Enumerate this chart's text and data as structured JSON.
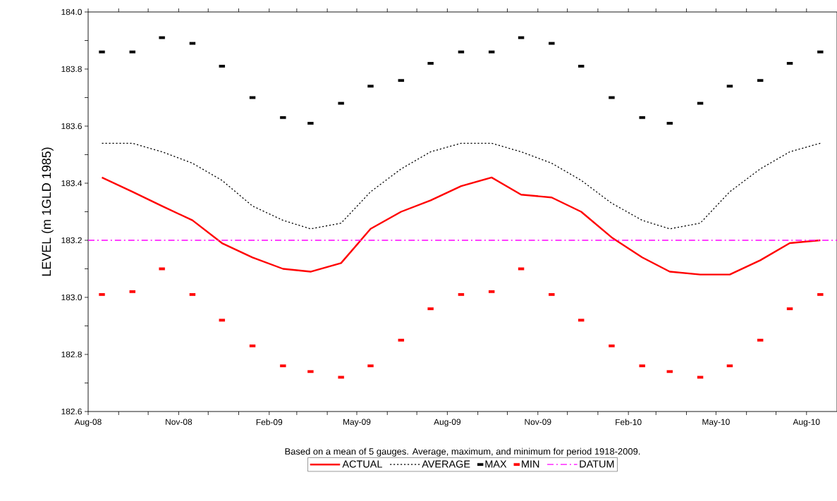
{
  "chart_data": {
    "type": "line",
    "ylabel": "LEVEL (m 1GLD 1985)",
    "annotations": [
      "Based on a mean of 5 gauges.  Average, maximum, and minimum for period 1918-2009."
    ],
    "x": [
      "2008-08-15",
      "2008-09-15",
      "2008-10-15",
      "2008-11-15",
      "2008-12-15",
      "2009-01-15",
      "2009-02-15",
      "2009-03-15",
      "2009-04-15",
      "2009-05-15",
      "2009-06-15",
      "2009-07-15",
      "2009-08-15",
      "2009-09-15",
      "2009-10-15",
      "2009-11-15",
      "2009-12-15",
      "2010-01-15",
      "2010-02-15",
      "2010-03-15",
      "2010-04-15",
      "2010-05-15",
      "2010-06-15",
      "2010-07-15",
      "2010-08-15"
    ],
    "series": [
      {
        "name": "ACTUAL",
        "color": "#ff0000",
        "line_style": "solid",
        "values": [
          183.42,
          183.37,
          183.32,
          183.27,
          183.19,
          183.14,
          183.1,
          183.09,
          183.12,
          183.24,
          183.3,
          183.34,
          183.39,
          183.42,
          183.36,
          183.35,
          183.3,
          183.21,
          183.14,
          183.09,
          183.08,
          183.08,
          183.13,
          183.19,
          183.2
        ]
      },
      {
        "name": "AVERAGE",
        "color": "#000000",
        "line_style": "dotted",
        "values": [
          183.54,
          183.54,
          183.51,
          183.47,
          183.41,
          183.32,
          183.27,
          183.24,
          183.26,
          183.37,
          183.45,
          183.51,
          183.54,
          183.54,
          183.51,
          183.47,
          183.41,
          183.33,
          183.27,
          183.24,
          183.26,
          183.37,
          183.45,
          183.51,
          183.54
        ]
      },
      {
        "name": "MAX",
        "type": "scatter",
        "color": "#000000",
        "values": [
          183.86,
          183.86,
          183.91,
          183.89,
          183.81,
          183.7,
          183.63,
          183.61,
          183.68,
          183.74,
          183.76,
          183.82,
          183.86,
          183.86,
          183.91,
          183.89,
          183.81,
          183.7,
          183.63,
          183.61,
          183.68,
          183.74,
          183.76,
          183.82,
          183.86
        ]
      },
      {
        "name": "MIN",
        "type": "scatter",
        "color": "#ff0000",
        "values": [
          183.01,
          183.02,
          183.1,
          183.01,
          182.92,
          182.83,
          182.76,
          182.74,
          182.72,
          182.76,
          182.85,
          182.96,
          183.01,
          183.02,
          183.1,
          183.01,
          182.92,
          182.83,
          182.76,
          182.74,
          182.72,
          182.76,
          182.85,
          182.96,
          183.01
        ]
      }
    ],
    "ref_lines": [
      {
        "axis": "y",
        "value": 183.2,
        "label": "DATUM",
        "color": "#ff00ff",
        "line_style": "dashdot"
      }
    ],
    "xlim": [
      "2008-08-01",
      "2010-09-01"
    ],
    "xticks": [
      {
        "value": "2008-08-01",
        "label": "Aug-08"
      },
      {
        "value": "2008-09-01",
        "label": null
      },
      {
        "value": "2008-10-01",
        "label": null
      },
      {
        "value": "2008-11-01",
        "label": "Nov-08"
      },
      {
        "value": "2008-12-01",
        "label": null
      },
      {
        "value": "2009-01-01",
        "label": null
      },
      {
        "value": "2009-02-01",
        "label": "Feb-09"
      },
      {
        "value": "2009-03-01",
        "label": null
      },
      {
        "value": "2009-04-01",
        "label": null
      },
      {
        "value": "2009-05-01",
        "label": "May-09"
      },
      {
        "value": "2009-06-01",
        "label": null
      },
      {
        "value": "2009-07-01",
        "label": null
      },
      {
        "value": "2009-08-01",
        "label": "Aug-09"
      },
      {
        "value": "2009-09-01",
        "label": null
      },
      {
        "value": "2009-10-01",
        "label": null
      },
      {
        "value": "2009-11-01",
        "label": "Nov-09"
      },
      {
        "value": "2009-12-01",
        "label": null
      },
      {
        "value": "2010-01-01",
        "label": null
      },
      {
        "value": "2010-02-01",
        "label": "Feb-10"
      },
      {
        "value": "2010-03-01",
        "label": null
      },
      {
        "value": "2010-04-01",
        "label": null
      },
      {
        "value": "2010-05-01",
        "label": "May-10"
      },
      {
        "value": "2010-06-01",
        "label": null
      },
      {
        "value": "2010-07-01",
        "label": null
      },
      {
        "value": "2010-08-01",
        "label": "Aug-10"
      }
    ],
    "ylim": [
      182.6,
      184.0
    ],
    "yticks": [
      {
        "value": 182.6,
        "label": "182.6"
      },
      {
        "value": 182.7,
        "label": null
      },
      {
        "value": 182.8,
        "label": "182.8"
      },
      {
        "value": 182.9,
        "label": null
      },
      {
        "value": 183.0,
        "label": "183.0"
      },
      {
        "value": 183.1,
        "label": null
      },
      {
        "value": 183.2,
        "label": "183.2"
      },
      {
        "value": 183.3,
        "label": null
      },
      {
        "value": 183.4,
        "label": "183.4"
      },
      {
        "value": 183.5,
        "label": null
      },
      {
        "value": 183.6,
        "label": "183.6"
      },
      {
        "value": 183.7,
        "label": null
      },
      {
        "value": 183.8,
        "label": "183.8"
      },
      {
        "value": 183.9,
        "label": null
      },
      {
        "value": 184.0,
        "label": "184.0"
      }
    ],
    "grid": false,
    "legend": "bottom"
  }
}
